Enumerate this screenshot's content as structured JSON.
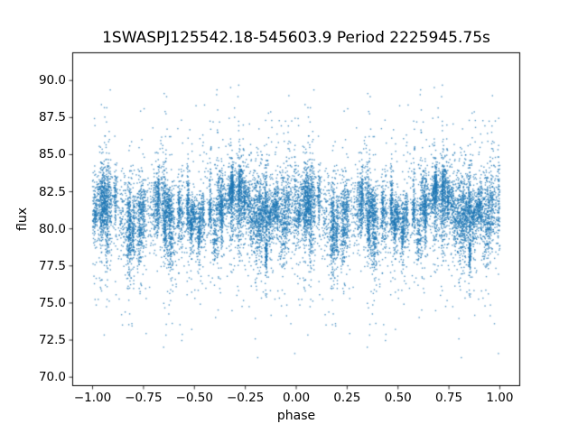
{
  "chart_data": {
    "type": "scatter",
    "title": "1SWASPJ125542.18-545603.9 Period 2225945.75s",
    "xlabel": "phase",
    "ylabel": "flux",
    "xlim": [
      -1.1,
      1.1
    ],
    "ylim": [
      69.4,
      91.9
    ],
    "xticks": [
      -1.0,
      -0.75,
      -0.5,
      -0.25,
      0.0,
      0.25,
      0.5,
      0.75,
      1.0
    ],
    "xtick_labels": [
      "−1.00",
      "−0.75",
      "−0.50",
      "−0.25",
      "0.00",
      "0.25",
      "0.50",
      "0.75",
      "1.00"
    ],
    "yticks": [
      70.0,
      72.5,
      75.0,
      77.5,
      80.0,
      82.5,
      85.0,
      87.5,
      90.0
    ],
    "ytick_labels": [
      "70.0",
      "72.5",
      "75.0",
      "77.5",
      "80.0",
      "82.5",
      "85.0",
      "87.5",
      "90.0"
    ],
    "marker_color": "#1f77b4",
    "marker_alpha": 0.75,
    "marker_size_px": 1.4,
    "grid": false,
    "legend": "none",
    "phase_fold_note": "each observation is plotted twice, at phase p and p-1",
    "generator": {
      "seed": 42,
      "n_clusters": 90,
      "points_per_cluster": [
        20,
        140
      ],
      "cluster_width": [
        0.002,
        0.012
      ],
      "wide_cluster_fraction": 0.15,
      "wide_cluster_scale": 3,
      "base_flux": 80.5,
      "cluster_mean_sigma": 0.8,
      "point_sigma": [
        0.7,
        2.2
      ],
      "outlier_fraction": 0.05,
      "outlier_extra": [
        1.5,
        6.5
      ],
      "background_points": 600,
      "background_sigma": 2.3,
      "bright_regions": [
        {
          "center": 0.7,
          "sigma": 0.06,
          "amplitude": 2.0
        },
        {
          "center": 0.02,
          "sigma": 0.05,
          "amplitude": 1.0
        },
        {
          "center": 0.33,
          "sigma": 0.04,
          "amplitude": 0.8
        }
      ],
      "flux_min": 70.2,
      "flux_max": 90.8
    }
  }
}
